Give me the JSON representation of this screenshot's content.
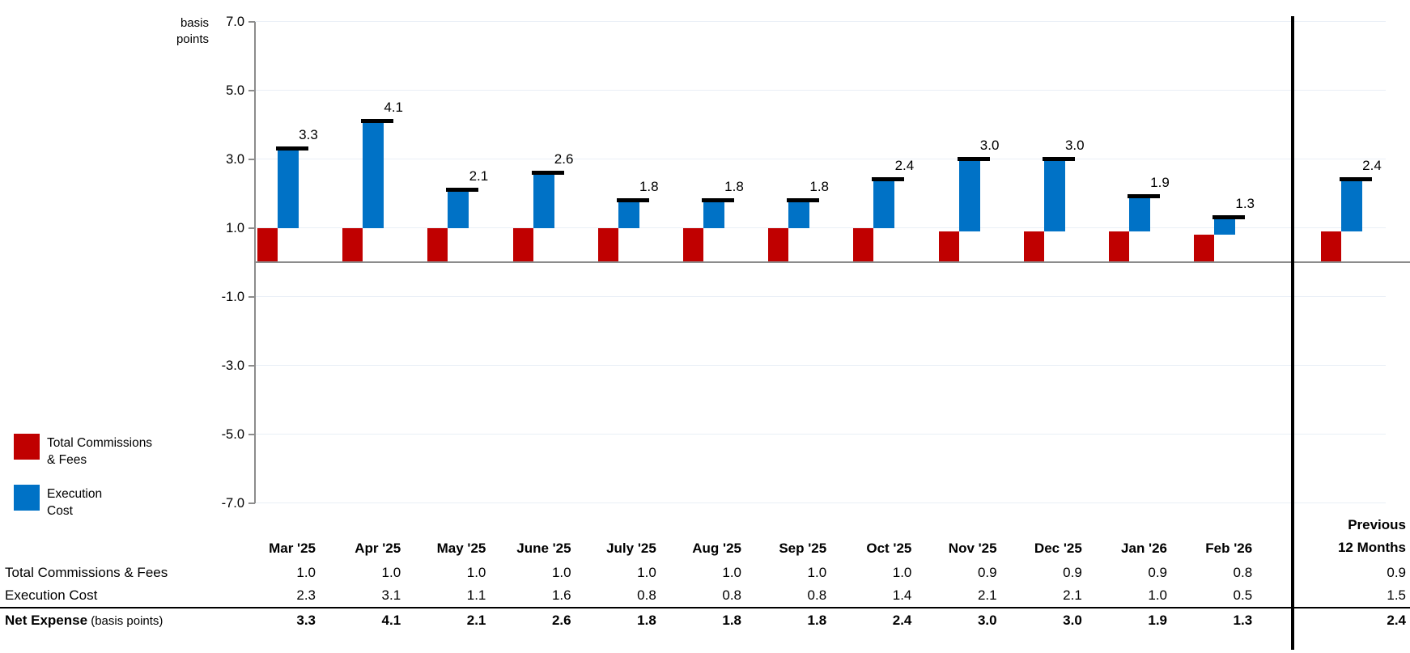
{
  "colors": {
    "tcf_red": "#C00000",
    "execution_blue": "#0072C6",
    "gridline": "#E9EFF6",
    "axis_gray": "#8C8C8C",
    "marker_black": "#000000"
  },
  "axis": {
    "unit_label_line1": "basis",
    "unit_label_line2": "points",
    "tick_labels": [
      "7.0",
      "5.0",
      "3.0",
      "1.0",
      "-1.0",
      "-3.0",
      "-5.0",
      "-7.0"
    ],
    "tick_values": [
      7,
      5,
      3,
      1,
      -1,
      -3,
      -5,
      -7
    ]
  },
  "legend": {
    "items": [
      {
        "id": "total-commissions-fees",
        "color": "#C00000",
        "line1": "Total Commissions",
        "line2": "& Fees"
      },
      {
        "id": "execution-cost",
        "color": "#0072C6",
        "line1": "Execution",
        "line2": "Cost"
      }
    ]
  },
  "chart_data": {
    "type": "bar",
    "subtype": "stacked waterfall bars with net-total dash markers",
    "unit": "basis points",
    "categories": [
      "Mar '25",
      "Apr '25",
      "May '25",
      "June '25",
      "July '25",
      "Aug '25",
      "Sep '25",
      "Oct '25",
      "Nov '25",
      "Dec '25",
      "Jan '26",
      "Feb '26"
    ],
    "summary_category": "Previous 12 Months",
    "series": [
      {
        "name": "Total Commissions & Fees",
        "color": "#C00000",
        "values": [
          1.0,
          1.0,
          1.0,
          1.0,
          1.0,
          1.0,
          1.0,
          1.0,
          0.9,
          0.9,
          0.9,
          0.8
        ],
        "summary_value": 0.9
      },
      {
        "name": "Execution Cost",
        "color": "#0072C6",
        "values": [
          2.3,
          3.1,
          1.1,
          1.6,
          0.8,
          0.8,
          0.8,
          1.4,
          2.1,
          2.1,
          1.0,
          0.5
        ],
        "summary_value": 1.5
      }
    ],
    "net_totals": {
      "name": "Net Expense",
      "values": [
        3.3,
        4.1,
        2.1,
        2.6,
        1.8,
        1.8,
        1.8,
        2.4,
        3.0,
        3.0,
        1.9,
        1.3
      ],
      "labels": [
        "3.3",
        "4.1",
        "2.1",
        "2.6",
        "1.8",
        "1.8",
        "1.8",
        "2.4",
        "3.0",
        "3.0",
        "1.9",
        "1.3"
      ],
      "summary_value": 2.4,
      "summary_label": "2.4"
    },
    "ylim": [
      -7.0,
      7.0
    ],
    "grid": true,
    "legend_position": "left-bottom"
  },
  "table": {
    "column_headers": [
      "Mar '25",
      "Apr '25",
      "May '25",
      "June '25",
      "July '25",
      "Aug '25",
      "Sep '25",
      "Oct '25",
      "Nov '25",
      "Dec '25",
      "Jan '26",
      "Feb '26"
    ],
    "summary_header_line1": "Previous",
    "summary_header_line2": "12 Months",
    "rows": [
      {
        "label": "Total Commissions & Fees",
        "suffix": "",
        "bold": false,
        "cells": [
          "1.0",
          "1.0",
          "1.0",
          "1.0",
          "1.0",
          "1.0",
          "1.0",
          "1.0",
          "0.9",
          "0.9",
          "0.9",
          "0.8"
        ],
        "summary": "0.9"
      },
      {
        "label": "Execution Cost",
        "suffix": "",
        "bold": false,
        "cells": [
          "2.3",
          "3.1",
          "1.1",
          "1.6",
          "0.8",
          "0.8",
          "0.8",
          "1.4",
          "2.1",
          "2.1",
          "1.0",
          "0.5"
        ],
        "summary": "1.5"
      },
      {
        "label": "Net Expense",
        "suffix": "(basis points)",
        "bold": true,
        "cells": [
          "3.3",
          "4.1",
          "2.1",
          "2.6",
          "1.8",
          "1.8",
          "1.8",
          "2.4",
          "3.0",
          "3.0",
          "1.9",
          "1.3"
        ],
        "summary": "2.4"
      }
    ]
  }
}
